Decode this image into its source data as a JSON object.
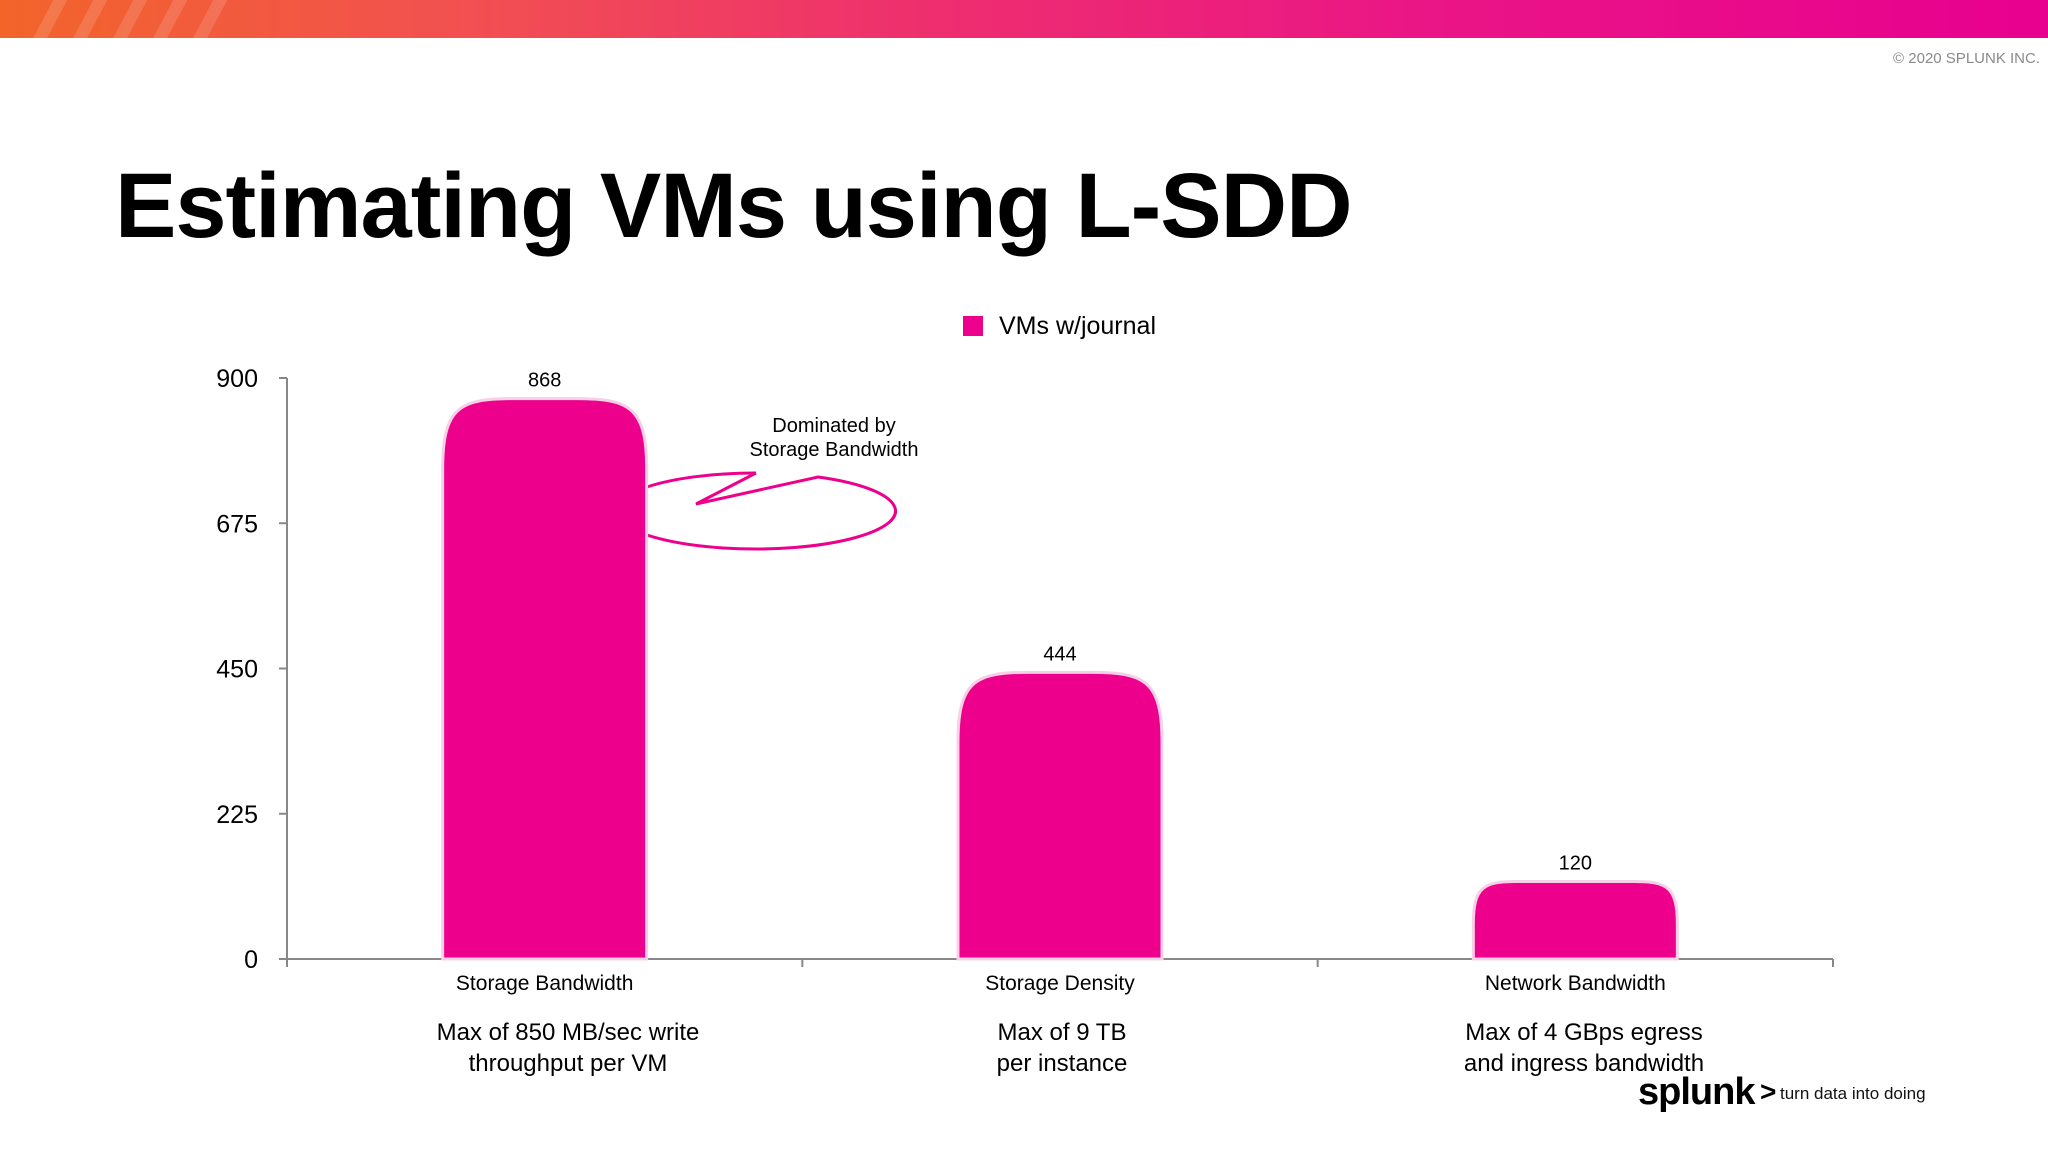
{
  "header": {
    "copyright": "© 2020 SPLUNK INC."
  },
  "slide": {
    "title": "Estimating VMs using L-SDD"
  },
  "chart_data": {
    "type": "bar",
    "categories": [
      "Storage Bandwidth",
      "Storage Density",
      "Network Bandwidth"
    ],
    "series": [
      {
        "name": "VMs w/journal",
        "values": [
          868,
          444,
          120
        ],
        "color": "#ec008c"
      }
    ],
    "yticks": [
      0,
      225,
      450,
      675,
      900
    ],
    "ylim": [
      0,
      900
    ],
    "legend_position": "top-center",
    "grid": false
  },
  "category_notes": [
    "Max of 850 MB/sec write\nthroughput per VM",
    "Max of 9 TB\nper instance",
    "Max of 4 GBps egress\nand ingress bandwidth"
  ],
  "callout": {
    "text": "Dominated by\nStorage Bandwidth",
    "color": "#ec008c"
  },
  "logo": {
    "word": "splunk",
    "chevron": ">",
    "tagline": "turn data into doing"
  }
}
